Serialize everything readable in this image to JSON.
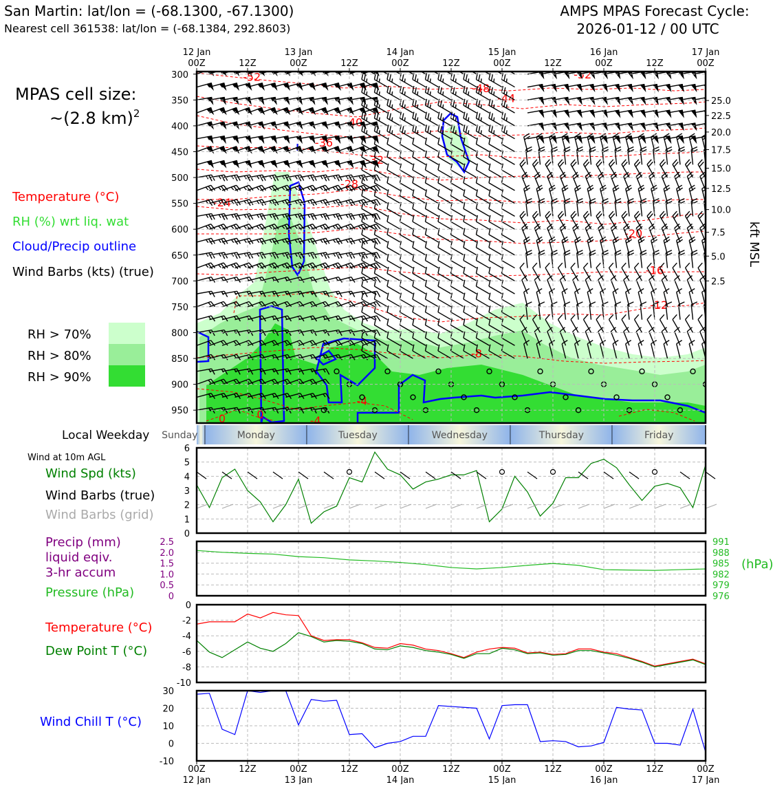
{
  "header": {
    "station_title": "San Martin: lat/lon = (-68.1300, -67.1300)",
    "nearest_cell": "Nearest cell 361538: lat/lon = (-68.1384, 292.8603)",
    "forecast_title": "AMPS MPAS Forecast Cycle:",
    "forecast_cycle": "2026-01-12 / 00 UTC"
  },
  "cell_size": {
    "line1": "MPAS cell size:",
    "line2": "~(2.8 km)",
    "exponent": "2"
  },
  "time_axis": {
    "top_ticks": [
      {
        "day": "12 Jan",
        "hour": "00Z"
      },
      {
        "day": "",
        "hour": "12Z"
      },
      {
        "day": "13 Jan",
        "hour": "00Z"
      },
      {
        "day": "",
        "hour": "12Z"
      },
      {
        "day": "14 Jan",
        "hour": "00Z"
      },
      {
        "day": "",
        "hour": "12Z"
      },
      {
        "day": "15 Jan",
        "hour": "00Z"
      },
      {
        "day": "",
        "hour": "12Z"
      },
      {
        "day": "16 Jan",
        "hour": "00Z"
      },
      {
        "day": "",
        "hour": "12Z"
      },
      {
        "day": "17 Jan",
        "hour": "00Z"
      }
    ]
  },
  "weekday_strip": {
    "label": "Local Weekday",
    "days": [
      {
        "name": "Sunday",
        "from_h": -10,
        "to_h": 2
      },
      {
        "name": "Monday",
        "from_h": 2,
        "to_h": 26
      },
      {
        "name": "Tuesday",
        "from_h": 26,
        "to_h": 50
      },
      {
        "name": "Wednesday",
        "from_h": 50,
        "to_h": 74
      },
      {
        "name": "Thursday",
        "from_h": 74,
        "to_h": 98
      },
      {
        "name": "Friday",
        "from_h": 98,
        "to_h": 120
      }
    ]
  },
  "sounding_legend": {
    "temperature": "Temperature (°C)",
    "rh": "RH (%) wrt liq. wat",
    "cloud": "Cloud/Precip outline",
    "barbs": "Wind Barbs (kts) (true)",
    "rh70": "RH > 70%",
    "rh80": "RH > 80%",
    "rh90": "RH > 90%"
  },
  "panel_legends": {
    "wind_level": "Wind at 10m AGL",
    "wind_spd": "Wind Spd (kts)",
    "barbs_true": "Wind Barbs (true)",
    "barbs_grid": "Wind Barbs (grid)",
    "precip1": "Precip (mm)",
    "precip2": "liquid eqiv.",
    "precip3": "3-hr accum",
    "pressure": "Pressure (hPa)",
    "pressure_unit": "(hPa)",
    "temperature": "Temperature (°C)",
    "dewpoint": "Dew Point T (°C)",
    "windchill": "Wind Chill T (°C)"
  },
  "colors": {
    "temperature": "#ff0000",
    "dewpoint": "#008000",
    "rh_text": "#33dd33",
    "cloud": "#0000ff",
    "rh70": "#ccffcc",
    "rh80": "#99ee99",
    "rh90": "#33dd33",
    "wind": "#008000",
    "pressure": "#22bb22",
    "precip": "#800080",
    "grid_barbs": "#aaaaaa",
    "windchill": "#0000ff"
  },
  "chart_data": [
    {
      "type": "heatmap",
      "name": "time-height section",
      "ylabel_right": "kft MSL",
      "y_pressure_ticks": [
        300,
        350,
        400,
        450,
        500,
        550,
        600,
        650,
        700,
        750,
        800,
        850,
        900,
        950
      ],
      "y_height_ticks": [
        {
          "kft": "25.0",
          "p": 351
        },
        {
          "kft": "22.5",
          "p": 380
        },
        {
          "kft": "20.0",
          "p": 412
        },
        {
          "kft": "17.5",
          "p": 446
        },
        {
          "kft": "15.0",
          "p": 482
        },
        {
          "kft": "12.5",
          "p": 521
        },
        {
          "kft": "10.0",
          "p": 562
        },
        {
          "kft": "7.5",
          "p": 606
        },
        {
          "kft": "5.0",
          "p": 652
        },
        {
          "kft": "2.5",
          "p": 700
        }
      ],
      "temperature_contours": [
        {
          "label": "-52",
          "h": 13,
          "p": 305
        },
        {
          "label": "-52",
          "h": 91,
          "p": 300
        },
        {
          "label": "-48",
          "h": 67,
          "p": 327
        },
        {
          "label": "-44",
          "h": 73,
          "p": 346
        },
        {
          "label": "-40",
          "h": 37,
          "p": 393
        },
        {
          "label": "-36",
          "h": 30,
          "p": 432
        },
        {
          "label": "-32",
          "h": 42,
          "p": 465
        },
        {
          "label": "-28",
          "h": 36,
          "p": 512
        },
        {
          "label": "-24",
          "h": 6,
          "p": 548
        },
        {
          "label": "-20",
          "h": 103,
          "p": 608
        },
        {
          "label": "-16",
          "h": 108,
          "p": 679
        },
        {
          "label": "-12",
          "h": 109,
          "p": 746
        },
        {
          "label": "-8",
          "h": 66,
          "p": 840
        },
        {
          "label": "-4",
          "h": 39,
          "p": 932
        },
        {
          "label": "-4",
          "h": 28,
          "p": 970
        },
        {
          "label": "0",
          "h": 6,
          "p": 966
        },
        {
          "label": "0",
          "h": 15,
          "p": 958
        }
      ],
      "rh_thresholds": [
        "70",
        "80",
        "90"
      ]
    },
    {
      "type": "line",
      "name": "10m wind speed",
      "ylim": [
        0,
        6
      ],
      "y_ticks": [
        "0",
        "1",
        "2",
        "3",
        "4",
        "5",
        "6"
      ],
      "x_hours": [
        0,
        3,
        6,
        9,
        12,
        15,
        18,
        21,
        24,
        27,
        30,
        33,
        36,
        39,
        42,
        45,
        48,
        51,
        54,
        57,
        60,
        63,
        66,
        69,
        72,
        75,
        78,
        81,
        84,
        87,
        90,
        93,
        96,
        99,
        102,
        105,
        108,
        111,
        114,
        117,
        120
      ],
      "values": [
        3.4,
        1.8,
        3.9,
        4.5,
        3.0,
        2.2,
        0.8,
        2.0,
        3.8,
        0.7,
        1.5,
        1.9,
        3.9,
        3.6,
        5.7,
        4.5,
        4.1,
        3.1,
        3.6,
        3.8,
        4.1,
        4.1,
        4.4,
        0.8,
        1.7,
        4.0,
        2.9,
        1.2,
        2.1,
        3.9,
        3.9,
        4.9,
        5.2,
        4.6,
        3.4,
        2.3,
        3.3,
        3.5,
        3.2,
        1.8,
        4.8
      ]
    },
    {
      "type": "line",
      "name": "pressure",
      "ylim": [
        976,
        991
      ],
      "y_ticks_right": [
        "991",
        "988",
        "985",
        "982",
        "979",
        "976"
      ],
      "precip_ticks_left": [
        "2.5",
        "2.0",
        "1.5",
        "1.0",
        "0.5",
        "0"
      ],
      "x_hours": [
        0,
        6,
        12,
        18,
        24,
        30,
        36,
        42,
        48,
        54,
        60,
        66,
        72,
        78,
        84,
        90,
        96,
        102,
        108,
        114,
        120
      ],
      "values": [
        988.5,
        988.0,
        987.7,
        987.5,
        986.8,
        986.5,
        985.9,
        985.6,
        985.2,
        984.6,
        983.8,
        983.4,
        983.8,
        984.4,
        984.9,
        984.4,
        983.2,
        983.1,
        983.0,
        983.2,
        983.4
      ]
    },
    {
      "type": "line",
      "name": "temperature and dew point",
      "ylim": [
        -10,
        0
      ],
      "y_ticks": [
        "0",
        "-2",
        "-4",
        "-6",
        "-8",
        "-10"
      ],
      "x_hours": [
        0,
        3,
        6,
        9,
        12,
        15,
        18,
        21,
        24,
        27,
        30,
        33,
        36,
        39,
        42,
        45,
        48,
        51,
        54,
        57,
        60,
        63,
        66,
        69,
        72,
        75,
        78,
        81,
        84,
        87,
        90,
        93,
        96,
        99,
        102,
        105,
        108,
        111,
        114,
        117,
        120
      ],
      "series": [
        {
          "name": "Temperature (°C)",
          "values": [
            -2.5,
            -2.2,
            -2.2,
            -2.2,
            -1.2,
            -1.7,
            -1.0,
            -1.3,
            -1.4,
            -4.0,
            -4.6,
            -4.5,
            -4.5,
            -4.9,
            -5.5,
            -5.6,
            -5.0,
            -5.2,
            -5.7,
            -5.9,
            -6.3,
            -6.8,
            -6.1,
            -5.7,
            -5.5,
            -5.6,
            -6.2,
            -6.1,
            -6.4,
            -6.3,
            -5.7,
            -5.7,
            -6.1,
            -6.3,
            -6.8,
            -7.3,
            -7.9,
            -7.6,
            -7.3,
            -7.0,
            -7.6
          ]
        },
        {
          "name": "Dew Point T (°C)",
          "values": [
            -4.6,
            -6.1,
            -6.8,
            -5.8,
            -4.8,
            -5.6,
            -6.0,
            -5.0,
            -3.6,
            -4.1,
            -4.8,
            -4.6,
            -4.7,
            -5.0,
            -5.7,
            -5.8,
            -5.3,
            -5.5,
            -5.9,
            -6.1,
            -6.4,
            -6.9,
            -6.3,
            -6.3,
            -5.6,
            -5.8,
            -6.3,
            -6.2,
            -6.5,
            -6.4,
            -5.9,
            -5.9,
            -6.2,
            -6.5,
            -6.9,
            -7.4,
            -8.0,
            -7.7,
            -7.4,
            -7.1,
            -7.7
          ]
        }
      ]
    },
    {
      "type": "line",
      "name": "wind chill",
      "ylim": [
        -10,
        30
      ],
      "y_ticks": [
        "30",
        "20",
        "10",
        "0",
        "-10"
      ],
      "x_hours": [
        0,
        3,
        6,
        9,
        12,
        15,
        18,
        21,
        24,
        27,
        30,
        33,
        36,
        39,
        42,
        45,
        48,
        51,
        54,
        57,
        60,
        63,
        66,
        69,
        72,
        75,
        78,
        81,
        84,
        87,
        90,
        93,
        96,
        99,
        102,
        105,
        108,
        111,
        114,
        117,
        120
      ],
      "values": [
        28,
        28.5,
        8,
        5,
        30,
        29,
        30,
        30,
        10.5,
        25,
        24,
        24.5,
        5,
        5.5,
        -2.5,
        0,
        1,
        4,
        4,
        21.5,
        21,
        20.5,
        20,
        2.5,
        21.5,
        22,
        22,
        1,
        1.5,
        1,
        -2,
        -1.5,
        0.5,
        20.5,
        19.5,
        19,
        0,
        0,
        -1,
        19.5,
        -5
      ]
    }
  ],
  "bottom_axis": {
    "ticks": [
      {
        "hour": "00Z",
        "day": "12 Jan"
      },
      {
        "hour": "12Z",
        "day": ""
      },
      {
        "hour": "00Z",
        "day": "13 Jan"
      },
      {
        "hour": "12Z",
        "day": ""
      },
      {
        "hour": "00Z",
        "day": "14 Jan"
      },
      {
        "hour": "12Z",
        "day": ""
      },
      {
        "hour": "00Z",
        "day": "15 Jan"
      },
      {
        "hour": "12Z",
        "day": ""
      },
      {
        "hour": "00Z",
        "day": "16 Jan"
      },
      {
        "hour": "12Z",
        "day": ""
      },
      {
        "hour": "00Z",
        "day": "17 Jan"
      }
    ]
  }
}
